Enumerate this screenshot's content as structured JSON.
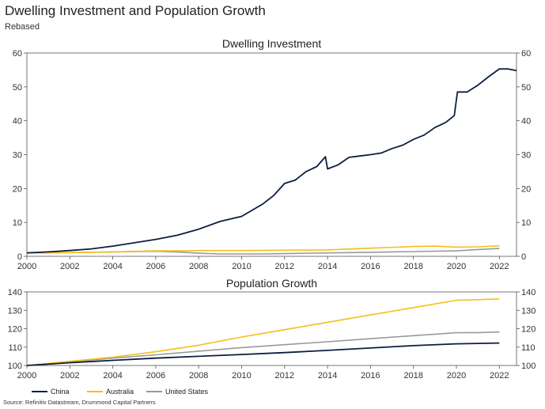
{
  "header": {
    "title": "Dwelling Investment and Population Growth",
    "subtitle": "Rebased"
  },
  "footer": {
    "source": "Source: Refinitiv Datastream, Drummond Capital Partners"
  },
  "colors": {
    "china": "#0b1f3f",
    "australia": "#f5bf1a",
    "united_states": "#999999"
  },
  "chart_data": [
    {
      "type": "line",
      "title": "Dwelling Investment",
      "xlim": [
        2000,
        2022.8
      ],
      "ylim": [
        0,
        60
      ],
      "x_ticks": [
        2000,
        2002,
        2004,
        2006,
        2008,
        2010,
        2012,
        2014,
        2016,
        2018,
        2020,
        2022
      ],
      "y_ticks": [
        0,
        10,
        20,
        30,
        40,
        50,
        60
      ],
      "grid": false,
      "series": [
        {
          "name": "China",
          "color": "#0b1f3f",
          "points": [
            [
              2000,
              1.0
            ],
            [
              2001,
              1.3
            ],
            [
              2002,
              1.7
            ],
            [
              2003,
              2.2
            ],
            [
              2004,
              3.0
            ],
            [
              2005,
              4.0
            ],
            [
              2006,
              5.0
            ],
            [
              2007,
              6.2
            ],
            [
              2008,
              8.0
            ],
            [
              2009,
              10.3
            ],
            [
              2010,
              11.8
            ],
            [
              2011,
              15.5
            ],
            [
              2011.5,
              18.0
            ],
            [
              2012,
              21.5
            ],
            [
              2012.5,
              22.5
            ],
            [
              2013,
              25.0
            ],
            [
              2013.5,
              26.5
            ],
            [
              2013.9,
              29.4
            ],
            [
              2014,
              25.8
            ],
            [
              2014.5,
              27.0
            ],
            [
              2015,
              29.2
            ],
            [
              2015.5,
              29.6
            ],
            [
              2016,
              30.0
            ],
            [
              2016.5,
              30.5
            ],
            [
              2017,
              31.8
            ],
            [
              2017.5,
              32.8
            ],
            [
              2018,
              34.5
            ],
            [
              2018.5,
              35.8
            ],
            [
              2019,
              38.0
            ],
            [
              2019.5,
              39.5
            ],
            [
              2019.9,
              41.5
            ],
            [
              2020.05,
              48.5
            ],
            [
              2020.5,
              48.5
            ],
            [
              2021,
              50.5
            ],
            [
              2021.5,
              53.0
            ],
            [
              2022,
              55.3
            ],
            [
              2022.4,
              55.3
            ],
            [
              2022.8,
              54.8
            ]
          ]
        },
        {
          "name": "Australia",
          "color": "#f5bf1a",
          "points": [
            [
              2000,
              1.0
            ],
            [
              2002,
              1.1
            ],
            [
              2004,
              1.3
            ],
            [
              2006,
              1.6
            ],
            [
              2007,
              1.6
            ],
            [
              2008,
              1.7
            ],
            [
              2010,
              1.7
            ],
            [
              2012,
              1.8
            ],
            [
              2014,
              1.9
            ],
            [
              2016,
              2.4
            ],
            [
              2018,
              2.9
            ],
            [
              2019,
              3.0
            ],
            [
              2020,
              2.7
            ],
            [
              2021,
              2.8
            ],
            [
              2022,
              3.1
            ]
          ]
        },
        {
          "name": "United States",
          "color": "#999999",
          "points": [
            [
              2000,
              1.0
            ],
            [
              2002,
              1.1
            ],
            [
              2004,
              1.3
            ],
            [
              2006,
              1.5
            ],
            [
              2007,
              1.3
            ],
            [
              2008,
              0.9
            ],
            [
              2009,
              0.7
            ],
            [
              2011,
              0.7
            ],
            [
              2012,
              0.8
            ],
            [
              2014,
              1.0
            ],
            [
              2016,
              1.2
            ],
            [
              2018,
              1.4
            ],
            [
              2020,
              1.6
            ],
            [
              2021,
              2.0
            ],
            [
              2022,
              2.3
            ]
          ]
        }
      ]
    },
    {
      "type": "line",
      "title": "Population Growth",
      "xlim": [
        2000,
        2022.8
      ],
      "ylim": [
        100,
        140
      ],
      "x_ticks": [
        2000,
        2002,
        2004,
        2006,
        2008,
        2010,
        2012,
        2014,
        2016,
        2018,
        2020,
        2022
      ],
      "y_ticks": [
        100,
        110,
        120,
        130,
        140
      ],
      "grid": false,
      "legend": "bottom-left",
      "series": [
        {
          "name": "China",
          "color": "#0b1f3f",
          "points": [
            [
              2000,
              100
            ],
            [
              2002,
              101.5
            ],
            [
              2004,
              102.8
            ],
            [
              2006,
              104.0
            ],
            [
              2008,
              105.0
            ],
            [
              2010,
              106.0
            ],
            [
              2012,
              107.0
            ],
            [
              2014,
              108.2
            ],
            [
              2016,
              109.5
            ],
            [
              2018,
              110.8
            ],
            [
              2020,
              111.8
            ],
            [
              2022,
              112.2
            ]
          ]
        },
        {
          "name": "Australia",
          "color": "#f5bf1a",
          "points": [
            [
              2000,
              100
            ],
            [
              2002,
              102.3
            ],
            [
              2004,
              104.5
            ],
            [
              2006,
              107.5
            ],
            [
              2008,
              111.0
            ],
            [
              2010,
              115.5
            ],
            [
              2012,
              119.5
            ],
            [
              2014,
              123.5
            ],
            [
              2016,
              127.5
            ],
            [
              2018,
              131.5
            ],
            [
              2020,
              135.5
            ],
            [
              2021,
              135.8
            ],
            [
              2022,
              136.2
            ]
          ]
        },
        {
          "name": "United States",
          "color": "#999999",
          "points": [
            [
              2000,
              100
            ],
            [
              2002,
              102.0
            ],
            [
              2004,
              104.0
            ],
            [
              2006,
              105.8
            ],
            [
              2008,
              107.8
            ],
            [
              2010,
              109.7
            ],
            [
              2012,
              111.3
            ],
            [
              2014,
              112.9
            ],
            [
              2016,
              114.6
            ],
            [
              2018,
              116.2
            ],
            [
              2020,
              117.8
            ],
            [
              2021,
              117.9
            ],
            [
              2022,
              118.2
            ]
          ]
        }
      ]
    }
  ]
}
